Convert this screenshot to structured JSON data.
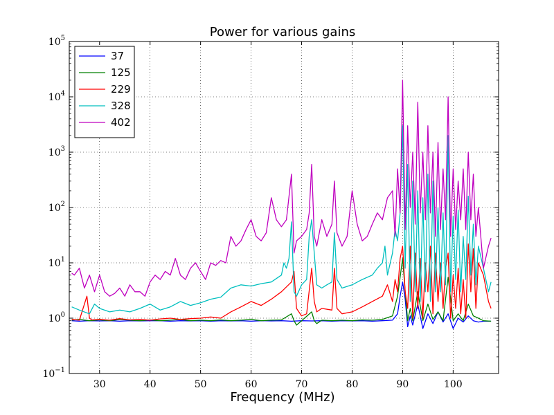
{
  "chart_data": {
    "type": "line",
    "title": "Power for various gains",
    "xlabel": "Frequency (MHz)",
    "ylabel": "",
    "xlim": [
      24,
      109
    ],
    "ylim": [
      0.1,
      100000
    ],
    "yscale": "log",
    "grid": true,
    "legend_position": "top-left",
    "x_ticks": [
      30,
      40,
      50,
      60,
      70,
      80,
      90,
      100
    ],
    "y_ticks": [
      {
        "value": 0.1,
        "base": "10",
        "exp": "−1"
      },
      {
        "value": 1,
        "base": "10",
        "exp": "0"
      },
      {
        "value": 10,
        "base": "10",
        "exp": "1"
      },
      {
        "value": 100,
        "base": "10",
        "exp": "2"
      },
      {
        "value": 1000,
        "base": "10",
        "exp": "3"
      },
      {
        "value": 10000,
        "base": "10",
        "exp": "4"
      },
      {
        "value": 100000,
        "base": "10",
        "exp": "5"
      }
    ],
    "series": [
      {
        "name": "37",
        "color": "#0000ff",
        "x": [
          24.5,
          26,
          28,
          30,
          32,
          34,
          36,
          38,
          40,
          42,
          44,
          46,
          48,
          50,
          52,
          54,
          56,
          58,
          60,
          62,
          64,
          66,
          68,
          70,
          72,
          74,
          76,
          78,
          80,
          82,
          84,
          86,
          88,
          89,
          89.5,
          90,
          90.5,
          91,
          91.5,
          92,
          93,
          94,
          95,
          96,
          97,
          98,
          99,
          100,
          101,
          102,
          103,
          104,
          105,
          106,
          107.5
        ],
        "values": [
          0.9,
          0.88,
          0.9,
          0.89,
          0.9,
          0.88,
          0.9,
          0.89,
          0.9,
          0.9,
          0.88,
          0.9,
          0.89,
          0.9,
          0.88,
          0.9,
          0.89,
          0.9,
          0.88,
          0.9,
          0.89,
          0.9,
          0.88,
          0.9,
          0.89,
          0.9,
          0.88,
          0.9,
          0.89,
          0.9,
          0.88,
          0.9,
          0.92,
          1.2,
          2.5,
          4.5,
          2.2,
          0.7,
          1.1,
          0.75,
          1.8,
          0.65,
          1.2,
          0.8,
          1.3,
          0.85,
          1.2,
          0.65,
          1.0,
          0.85,
          1.1,
          0.9,
          0.85,
          0.88,
          0.88
        ]
      },
      {
        "name": "125",
        "color": "#008000",
        "x": [
          24.5,
          26,
          28,
          30,
          32,
          34,
          36,
          38,
          40,
          42,
          44,
          46,
          48,
          50,
          52,
          54,
          56,
          58,
          60,
          62,
          64,
          66,
          68,
          68.5,
          69,
          70,
          72,
          72.5,
          73,
          74,
          76,
          78,
          80,
          82,
          84,
          86,
          88,
          89,
          89.5,
          90,
          90.5,
          91,
          91.5,
          92,
          93,
          94,
          95,
          96,
          97,
          98,
          99,
          100,
          101,
          102,
          103,
          104,
          105,
          106,
          107.5
        ],
        "values": [
          0.92,
          0.95,
          0.9,
          0.93,
          0.9,
          0.95,
          0.92,
          0.9,
          0.93,
          0.9,
          0.92,
          0.95,
          0.9,
          0.92,
          0.9,
          0.93,
          0.9,
          0.92,
          0.95,
          0.9,
          0.92,
          0.93,
          1.2,
          0.9,
          0.75,
          0.9,
          1.3,
          0.9,
          0.8,
          0.92,
          0.9,
          0.92,
          0.9,
          0.93,
          0.92,
          0.95,
          1.1,
          2.5,
          5.5,
          12,
          3.0,
          0.9,
          1.5,
          0.9,
          3.0,
          0.9,
          1.8,
          0.95,
          1.3,
          0.9,
          5.5,
          0.9,
          1.2,
          0.9,
          1.8,
          1.1,
          1.0,
          0.9,
          0.88
        ]
      },
      {
        "name": "229",
        "color": "#ff0000",
        "x": [
          24.5,
          26,
          27.5,
          28,
          28.5,
          30,
          32,
          34,
          36,
          38,
          40,
          42,
          44,
          46,
          48,
          50,
          52,
          54,
          56,
          58,
          60,
          62,
          64,
          66,
          68,
          68.5,
          69,
          70,
          71,
          72,
          72.5,
          73,
          74,
          76,
          76.5,
          77,
          78,
          80,
          82,
          84,
          86,
          87,
          88,
          88.5,
          89,
          89.5,
          90,
          90.5,
          91,
          91.5,
          92,
          92.5,
          93,
          93.5,
          94,
          94.5,
          95,
          95.5,
          96,
          96.5,
          97,
          97.5,
          98,
          98.5,
          99,
          99.5,
          100,
          100.5,
          101,
          101.5,
          102,
          102.5,
          103,
          103.5,
          104,
          104.5,
          105,
          106,
          107,
          107.5
        ],
        "values": [
          0.95,
          0.92,
          2.5,
          1.0,
          0.93,
          0.95,
          0.92,
          0.98,
          0.93,
          0.95,
          0.92,
          0.97,
          1.0,
          0.95,
          0.98,
          1.0,
          1.05,
          1.0,
          1.3,
          1.6,
          2.0,
          1.7,
          2.2,
          3.0,
          4.5,
          7,
          1.5,
          1.1,
          1.2,
          8,
          2.0,
          1.3,
          1.5,
          1.4,
          8,
          1.5,
          1.2,
          1.3,
          1.6,
          2.0,
          2.5,
          4,
          2,
          5,
          3,
          12,
          20,
          3,
          1.5,
          20,
          1,
          15,
          1.5,
          12,
          1,
          10,
          3,
          20,
          1.2,
          15,
          2,
          10,
          1.5,
          8,
          15,
          1,
          6,
          1.5,
          8,
          1.2,
          5,
          1,
          22,
          3,
          18,
          1.5,
          10,
          6,
          2,
          1.5
        ]
      },
      {
        "name": "328",
        "color": "#00bfbf",
        "x": [
          24.5,
          26,
          28,
          29,
          30,
          32,
          34,
          36,
          38,
          40,
          42,
          44,
          46,
          48,
          50,
          52,
          54,
          56,
          58,
          60,
          62,
          64,
          66,
          66.5,
          67,
          67.5,
          68,
          68.5,
          69,
          70,
          71,
          71.5,
          72,
          72.5,
          73,
          74,
          75,
          76,
          76.5,
          77,
          78,
          80,
          82,
          84,
          85,
          86,
          86.5,
          87,
          88,
          88.5,
          89,
          89.5,
          90,
          90.5,
          91,
          91.5,
          92,
          92.5,
          93,
          93.5,
          94,
          94.5,
          95,
          95.5,
          96,
          96.5,
          97,
          97.5,
          98,
          98.5,
          99,
          99.5,
          100,
          100.5,
          101,
          101.5,
          102,
          102.5,
          103,
          103.5,
          104,
          104.5,
          105,
          106,
          107,
          107.5
        ],
        "values": [
          1.6,
          1.4,
          1.2,
          1.8,
          1.5,
          1.3,
          1.4,
          1.3,
          1.5,
          1.8,
          1.4,
          1.6,
          2.0,
          1.7,
          1.9,
          2.2,
          2.4,
          3.5,
          4.0,
          3.8,
          4.2,
          4.5,
          6,
          10,
          8,
          12,
          55,
          3,
          2.5,
          4,
          5,
          30,
          60,
          15,
          4,
          3.5,
          4.0,
          4.5,
          35,
          5,
          3.5,
          4,
          5,
          6,
          8,
          10,
          20,
          6,
          15,
          40,
          25,
          80,
          3000,
          8,
          600,
          2,
          300,
          3,
          200,
          2,
          150,
          3,
          400,
          2,
          300,
          3,
          100,
          3,
          80,
          4,
          2000,
          3,
          70,
          5,
          90,
          3,
          30,
          5,
          160,
          6,
          50,
          4,
          20,
          8,
          3,
          4.5
        ]
      },
      {
        "name": "402",
        "color": "#bf00bf",
        "x": [
          24.5,
          25,
          26,
          27,
          28,
          29,
          30,
          31,
          32,
          33,
          34,
          35,
          36,
          37,
          38,
          39,
          40,
          41,
          42,
          43,
          44,
          45,
          46,
          47,
          48,
          49,
          50,
          51,
          52,
          53,
          54,
          55,
          56,
          57,
          58,
          59,
          60,
          61,
          62,
          63,
          64,
          65,
          66,
          67,
          68,
          68.5,
          69,
          70,
          71,
          71.5,
          72,
          72.5,
          73,
          74,
          75,
          76,
          76.5,
          77,
          78,
          79,
          80,
          81,
          82,
          83,
          84,
          85,
          86,
          87,
          88,
          88.5,
          89,
          89.5,
          90,
          90.5,
          91,
          91.5,
          92,
          92.5,
          93,
          93.5,
          94,
          94.5,
          95,
          95.5,
          96,
          96.5,
          97,
          97.5,
          98,
          98.5,
          99,
          99.5,
          100,
          100.5,
          101,
          101.5,
          102,
          102.5,
          103,
          103.5,
          104,
          104.5,
          105,
          106,
          107,
          107.5
        ],
        "values": [
          6.5,
          6,
          8,
          3.5,
          6,
          3,
          6,
          3,
          2.5,
          2.8,
          3.5,
          2.5,
          4,
          3,
          3,
          2.5,
          4.5,
          6,
          5,
          7,
          6,
          12,
          6,
          5,
          8,
          10,
          7,
          5,
          10,
          9,
          11,
          10,
          30,
          20,
          25,
          40,
          60,
          30,
          25,
          35,
          150,
          60,
          45,
          60,
          400,
          15,
          25,
          30,
          40,
          80,
          600,
          30,
          20,
          60,
          30,
          50,
          300,
          35,
          20,
          30,
          200,
          50,
          25,
          30,
          50,
          80,
          60,
          150,
          200,
          30,
          500,
          80,
          20000,
          40,
          3000,
          100,
          1000,
          50,
          8000,
          80,
          1000,
          60,
          3000,
          80,
          1000,
          30,
          1500,
          40,
          500,
          60,
          10000,
          30,
          500,
          40,
          300,
          60,
          500,
          40,
          1000,
          60,
          400,
          30,
          100,
          8,
          20,
          28
        ]
      }
    ]
  }
}
